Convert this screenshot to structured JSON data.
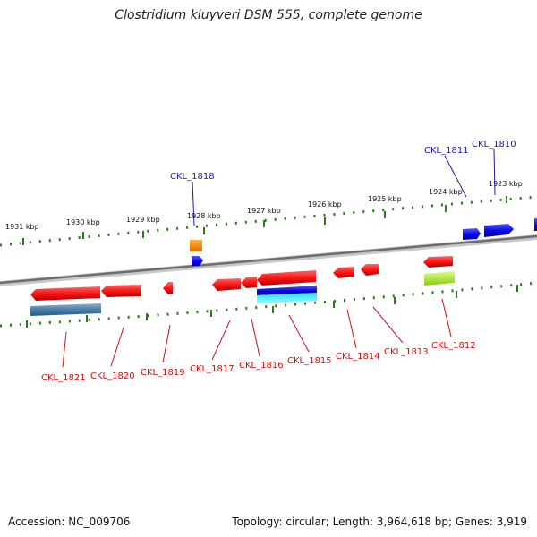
{
  "title": "Clostridium kluyveri DSM 555, complete genome",
  "footer": {
    "accession": "Accession: NC_009706",
    "summary": "Topology: circular; Length: 3,964,618 bp; Genes: 3,919"
  },
  "ruler_labels": [
    "1931 kbp",
    "1930 kbp",
    "1929 kbp",
    "1928 kbp",
    "1927 kbp",
    "1926 kbp",
    "1925 kbp",
    "1924 kbp",
    "1923 kbp"
  ],
  "genes_top": [
    "CKL_1818",
    "CKL_1811",
    "CKL_1810"
  ],
  "genes_bottom": [
    "CKL_1821",
    "CKL_1820",
    "CKL_1819",
    "CKL_1817",
    "CKL_1816",
    "CKL_1815",
    "CKL_1814",
    "CKL_1813",
    "CKL_1812"
  ],
  "colors": {
    "forward_gene": "#0a0ae0",
    "reverse_gene": "#ee1111",
    "top_label": "#1a1aa8",
    "bottom_label": "#cc1111",
    "tick": "#2a7a1e",
    "backbone": "#7a7a7a"
  }
}
